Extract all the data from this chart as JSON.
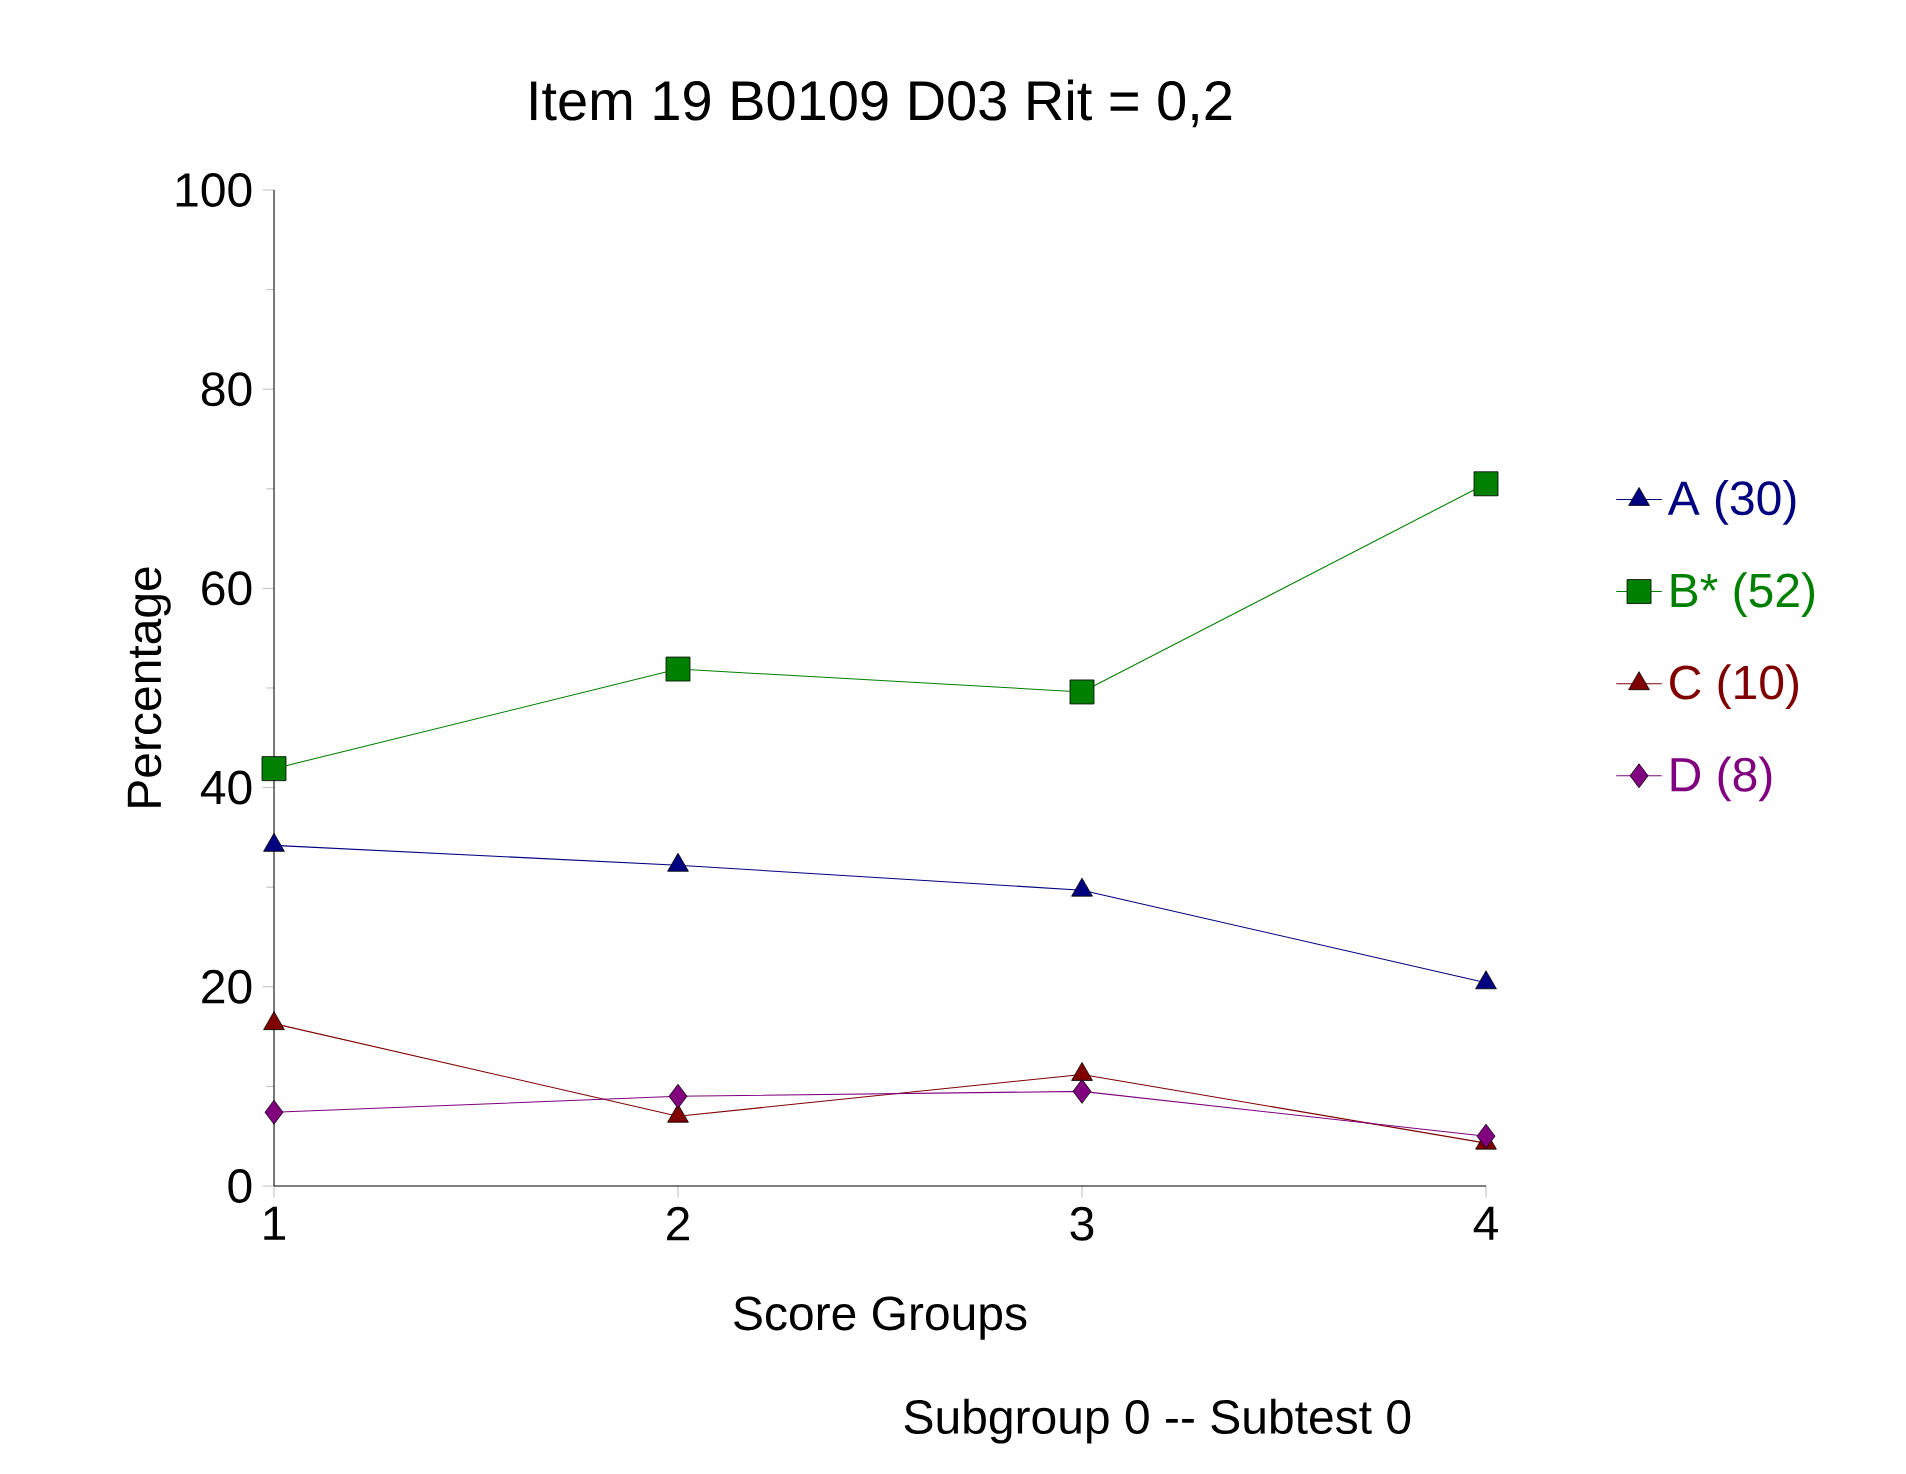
{
  "chart_data": {
    "type": "line",
    "title": "Item 19   B0109 D03     Rit = 0,2",
    "xlabel": "Score Groups",
    "ylabel": "Percentage",
    "annotations": [
      "Subgroup 0  --  Subtest 0"
    ],
    "x": [
      1,
      2,
      3,
      4
    ],
    "xlim": [
      1,
      4
    ],
    "xticks": [
      1,
      2,
      3,
      4
    ],
    "ylim": [
      0,
      100
    ],
    "yticks": [
      0,
      20,
      40,
      60,
      80,
      100
    ],
    "grid": false,
    "legend": "right",
    "line_style": "solid",
    "series": [
      {
        "name": "A (30)",
        "color": "#000080",
        "marker": "triangle",
        "values": [
          34.2,
          32.2,
          29.7,
          20.4
        ]
      },
      {
        "name": "B* (52)",
        "color": "#008000",
        "marker": "square",
        "values": [
          41.9,
          51.9,
          49.6,
          70.5
        ]
      },
      {
        "name": "C (10)",
        "color": "#800000",
        "marker": "triangle down",
        "values": [
          16.3,
          7.0,
          11.2,
          4.3
        ]
      },
      {
        "name": "D (8)",
        "color": "#800080",
        "marker": "diamond",
        "values": [
          7.4,
          9.0,
          9.5,
          5.0
        ]
      }
    ]
  }
}
